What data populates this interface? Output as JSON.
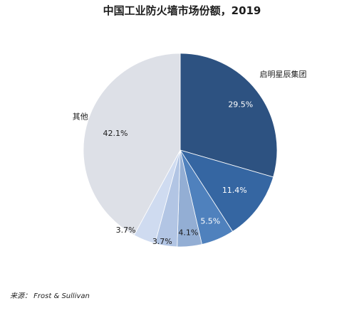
{
  "chart_data": {
    "type": "pie",
    "title": "中国工业防火墙市场份额，2019",
    "slices": [
      {
        "label": "启明星辰集团",
        "value": 29.5,
        "value_label": "29.5%",
        "color": "#2d5281",
        "value_color": "#ffffff"
      },
      {
        "label": "",
        "value": 11.4,
        "value_label": "11.4%",
        "color": "#3566a2",
        "value_color": "#ffffff"
      },
      {
        "label": "",
        "value": 5.5,
        "value_label": "5.5%",
        "color": "#4f81bd",
        "value_color": "#ffffff"
      },
      {
        "label": "",
        "value": 4.1,
        "value_label": "4.1%",
        "color": "#93aed4",
        "value_color": "#1a1a1a"
      },
      {
        "label": "",
        "value": 3.7,
        "value_label": "3.7%",
        "color": "#b2c5e4",
        "value_color": "#1a1a1a"
      },
      {
        "label": "",
        "value": 3.7,
        "value_label": "3.7%",
        "color": "#cfdbf0",
        "value_color": "#1a1a1a"
      },
      {
        "label": "其他",
        "value": 42.1,
        "value_label": "42.1%",
        "color": "#dde0e7",
        "value_color": "#1a1a1a"
      }
    ]
  },
  "source": "来源： Frost & Sullivan"
}
